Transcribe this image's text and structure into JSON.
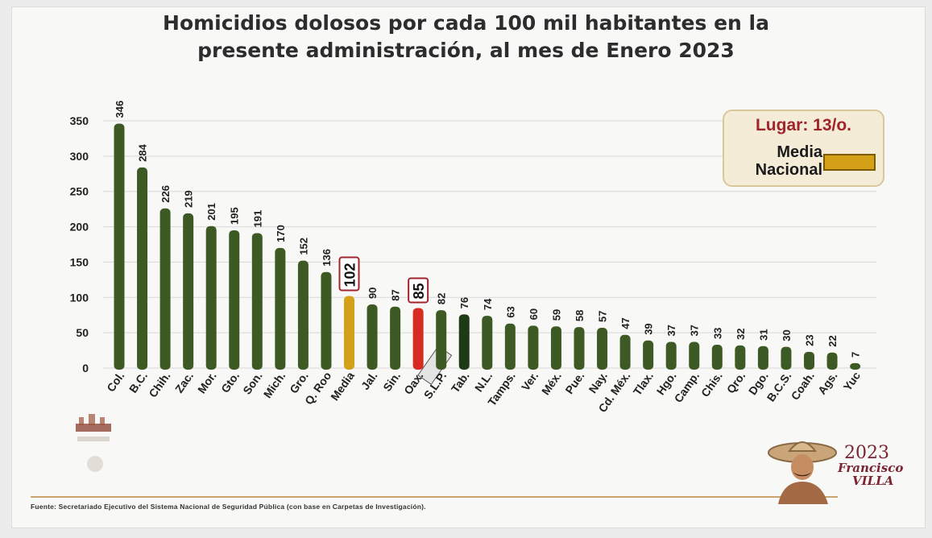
{
  "colors": {
    "bar": "#3e5a24",
    "bar_dark": "#1f3a17",
    "media": "#d4a017",
    "highlight": "#d62a22",
    "box_border": "#a1242c",
    "grid": "#d8d8d8"
  },
  "chart_data": {
    "type": "bar",
    "title": "Homicidios dolosos por cada 100 mil habitantes en la presente administración, al mes de Enero 2023",
    "ylim": [
      0,
      350
    ],
    "yticks": [
      0,
      50,
      100,
      150,
      200,
      250,
      300,
      350
    ],
    "grid": true,
    "categories": [
      "Col.",
      "B.C.",
      "Chih.",
      "Zac.",
      "Mor.",
      "Gto.",
      "Son.",
      "Mich.",
      "Gro.",
      "Q. Roo",
      "Media",
      "Jal.",
      "Sin.",
      "Oax.",
      "S.L.P.",
      "Tab.",
      "N.L.",
      "Tamps.",
      "Ver.",
      "Méx.",
      "Pue.",
      "Nay.",
      "Cd. Méx.",
      "Tlax.",
      "Hgo.",
      "Camp.",
      "Chis.",
      "Qro.",
      "Dgo.",
      "B.C.S.",
      "Coah.",
      "Ags.",
      "Yuc"
    ],
    "values": [
      346,
      284,
      226,
      219,
      201,
      195,
      191,
      170,
      152,
      136,
      102,
      90,
      87,
      85,
      82,
      76,
      74,
      63,
      60,
      59,
      58,
      57,
      47,
      39,
      37,
      37,
      33,
      32,
      31,
      30,
      23,
      22,
      7
    ],
    "value_labels": [
      "346",
      "284",
      "226",
      "219",
      "201",
      "195",
      "191",
      "170",
      "152",
      "136",
      "102",
      "90",
      "87",
      "85",
      "82",
      "76",
      "74",
      "63",
      "60",
      "59",
      "58",
      "57",
      "47",
      "39",
      "37",
      "37",
      "33",
      "32",
      "31",
      "30",
      "23",
      "22",
      "7"
    ],
    "media_category": "Media",
    "highlight_category": "Oax.",
    "darker_category": "Tab."
  },
  "legend": {
    "rank": "Lugar: 13/o.",
    "media_line1": "Media",
    "media_line2": "Nacional"
  },
  "source": "Fuente:  Secretariado Ejecutivo del Sistema Nacional de Seguridad Pública (con base en Carpetas de Investigación).",
  "logo": {
    "year": "2023",
    "name": "Francisco",
    "surname": "VILLA"
  }
}
